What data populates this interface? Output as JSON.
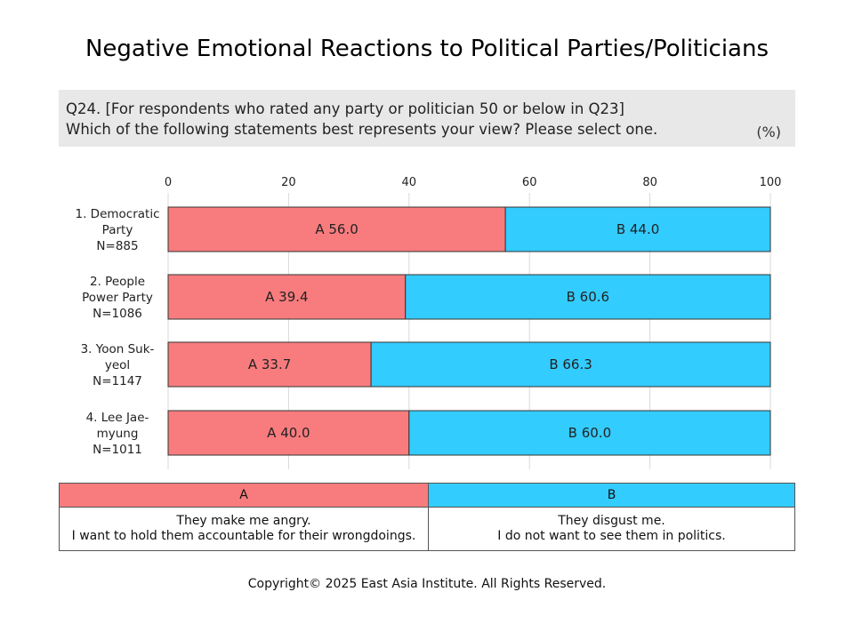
{
  "title": "Negative Emotional Reactions to Political Parties/Politicians",
  "question": {
    "line1": "Q24. [For respondents who rated any party or politician 50 or below in Q23]",
    "line2": "Which of the following statements best represents your view? Please select one.",
    "unit": "(%)"
  },
  "colors": {
    "A": "#f87c7e",
    "B": "#33ccff"
  },
  "chart_data": {
    "type": "bar",
    "orientation": "horizontal",
    "stacked": true,
    "xlim": [
      0,
      100
    ],
    "xticks": [
      0,
      20,
      40,
      60,
      80,
      100
    ],
    "categories": [
      {
        "lines": [
          "1. Democratic",
          "Party",
          "N=885"
        ]
      },
      {
        "lines": [
          "2. People",
          "Power Party",
          "N=1086"
        ]
      },
      {
        "lines": [
          "3. Yoon Suk-",
          "yeol",
          "N=1147"
        ]
      },
      {
        "lines": [
          "4. Lee Jae-",
          "myung",
          "N=1011"
        ]
      }
    ],
    "series": [
      {
        "name": "A",
        "values": [
          56.0,
          39.4,
          33.7,
          40.0
        ]
      },
      {
        "name": "B",
        "values": [
          44.0,
          60.6,
          66.3,
          60.0
        ]
      }
    ],
    "grid": true
  },
  "legend": {
    "A": {
      "header": "A",
      "line1": "They make me angry.",
      "line2": "I want to hold them accountable for their wrongdoings."
    },
    "B": {
      "header": "B",
      "line1": "They disgust me.",
      "line2": "I do not want to see them in politics."
    }
  },
  "copyright": "Copyright© 2025 East Asia Institute. All Rights Reserved."
}
